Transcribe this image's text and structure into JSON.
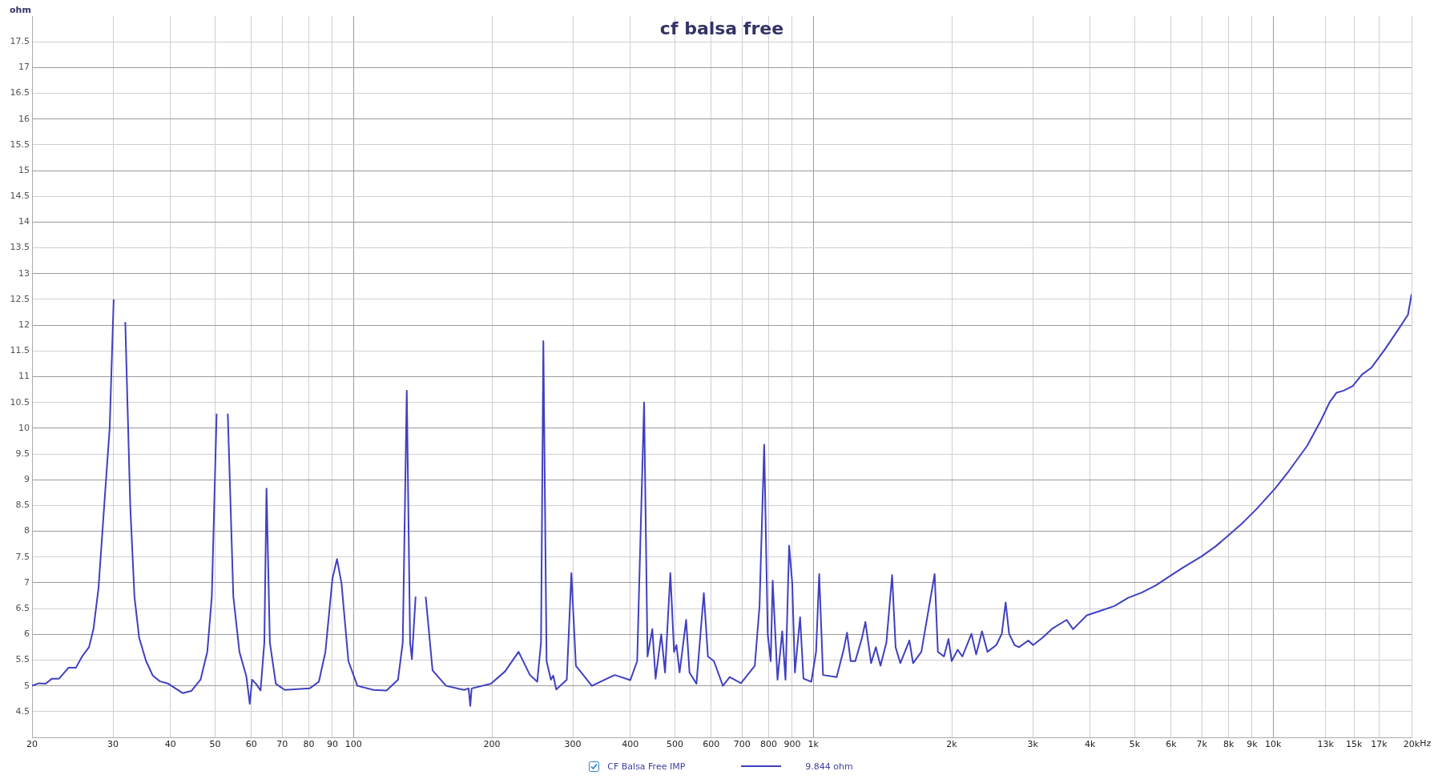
{
  "chart_data": {
    "type": "line",
    "title": "cf balsa free",
    "ylabel": "ohm",
    "annotations": [
      "9.844 ohm"
    ],
    "log": "x",
    "grid": true,
    "legend": "bottom",
    "marker": "none",
    "line_style": "solid",
    "xlim": [
      20,
      20000
    ],
    "xticks": [
      20,
      30,
      40,
      50,
      60,
      70,
      80,
      90,
      100,
      200,
      300,
      400,
      500,
      600,
      700,
      800,
      900,
      {
        "value": 1000,
        "label": "1k"
      },
      {
        "value": 2000,
        "label": "2k"
      },
      {
        "value": 3000,
        "label": "3k"
      },
      {
        "value": 4000,
        "label": "4k"
      },
      {
        "value": 5000,
        "label": "5k"
      },
      {
        "value": 6000,
        "label": "6k"
      },
      {
        "value": 7000,
        "label": "7k"
      },
      {
        "value": 8000,
        "label": "8k"
      },
      {
        "value": 9000,
        "label": "9k"
      },
      {
        "value": 10000,
        "label": "10k"
      },
      {
        "value": 13000,
        "label": "13k"
      },
      {
        "value": 15000,
        "label": "15k"
      },
      {
        "value": 17000,
        "label": "17k"
      },
      {
        "value": 20000,
        "label": "20k"
      }
    ],
    "xlabel": "Hz",
    "ylim": [
      4,
      18
    ],
    "yticks": [
      4.5,
      5,
      5.5,
      6,
      6.5,
      7,
      7.5,
      8,
      8.5,
      9,
      9.5,
      10,
      10.5,
      11,
      11.5,
      12,
      12.5,
      13,
      13.5,
      14,
      14.5,
      15,
      15.5,
      16,
      16.5,
      17,
      17.5
    ],
    "series": [
      {
        "name": "CF Balsa Free IMP",
        "color": "#4040c0",
        "x": [
          20,
          20.7,
          21.4,
          22.1,
          22.9,
          24.0,
          24.9,
          25.7,
          26.6,
          27.2,
          27.9,
          28.8,
          29.5,
          30.1,
          30.5,
          31.2,
          31.9,
          32.7,
          33.4,
          34.2,
          35.4,
          36.6,
          37.9,
          39.6,
          42.5,
          44.4,
          46.5,
          48.1,
          49.2,
          50.4,
          51.2,
          52.1,
          53.3,
          54.8,
          56.5,
          58.5,
          59.5,
          60.2,
          61.4,
          62.8,
          64.0,
          64.7,
          65.8,
          67.8,
          70.9,
          80.3,
          84.1,
          86.9,
          90.0,
          92.1,
          94.2,
          97.5,
          102,
          110.6,
          118,
          125,
          128,
          130.6,
          132.8,
          134,
          136.5,
          138.8,
          140.4,
          143.6,
          148.6,
          159,
          174,
          178,
          179.5,
          180.7,
          199,
          213.6,
          228.6,
          242,
          251,
          255.8,
          258.8,
          263,
          268.8,
          272,
          276,
          291,
          297.8,
          304.6,
          330,
          370,
          400,
          414,
          428.6,
          436,
          446.6,
          454,
          467,
          476,
          488.8,
          498,
          504,
          512,
          529,
          538,
          557,
          578,
          590,
          608,
          636,
          658,
          696,
          746,
          764,
          782,
          796,
          808,
          816,
          836,
          856,
          870,
          886,
          900,
          912,
          936,
          952,
          990,
          1014,
          1030,
          1050,
          1124,
          1164,
          1184,
          1206,
          1234,
          1276,
          1298,
          1336,
          1368,
          1400,
          1442,
          1484,
          1510,
          1546,
          1618,
          1648,
          1718,
          1836,
          1866,
          1924,
          1968,
          2000,
          2060,
          2110,
          2208,
          2260,
          2328,
          2392,
          2500,
          2570,
          2620,
          2666,
          2740,
          2800,
          2936,
          3006,
          3148,
          3320,
          3556,
          3672,
          3934,
          4220,
          4520,
          4840,
          5180,
          5560,
          5960,
          6380,
          6980,
          7480,
          8020,
          8600,
          9200,
          10100,
          10820,
          11860,
          12700,
          13280,
          13740,
          14240,
          14900,
          15600,
          16340,
          17500,
          18760,
          19640,
          20000
        ],
        "values": [
          5.0,
          5.05,
          5.04,
          5.14,
          5.14,
          5.35,
          5.35,
          5.57,
          5.75,
          6.1,
          6.9,
          8.68,
          10.0,
          12.5,
          null,
          null,
          12.06,
          8.5,
          6.73,
          5.93,
          5.48,
          5.2,
          5.09,
          5.04,
          4.86,
          4.9,
          5.12,
          5.66,
          6.73,
          10.28,
          null,
          null,
          10.28,
          6.73,
          5.66,
          5.18,
          4.65,
          5.12,
          5.04,
          4.91,
          5.84,
          8.83,
          5.84,
          5.04,
          4.92,
          4.95,
          5.08,
          5.66,
          7.08,
          7.46,
          6.99,
          5.48,
          5.0,
          4.92,
          4.91,
          5.12,
          5.84,
          10.73,
          5.84,
          5.52,
          6.73,
          null,
          null,
          6.73,
          5.3,
          5.0,
          4.92,
          4.95,
          4.61,
          4.95,
          5.04,
          5.28,
          5.66,
          5.21,
          5.08,
          5.84,
          11.69,
          5.48,
          5.12,
          5.2,
          4.93,
          5.12,
          7.19,
          5.39,
          5.0,
          5.21,
          5.11,
          5.48,
          10.5,
          5.57,
          6.1,
          5.14,
          6.0,
          5.26,
          7.19,
          5.66,
          5.79,
          5.26,
          6.28,
          5.26,
          5.04,
          6.8,
          5.57,
          5.48,
          5.0,
          5.17,
          5.05,
          5.39,
          6.55,
          9.68,
          6.0,
          5.48,
          7.04,
          5.12,
          6.06,
          5.12,
          7.72,
          6.99,
          5.26,
          6.33,
          5.14,
          5.08,
          5.66,
          7.17,
          5.21,
          5.17,
          5.7,
          6.03,
          5.48,
          5.48,
          5.93,
          6.24,
          5.44,
          5.75,
          5.39,
          5.84,
          7.15,
          5.75,
          5.44,
          5.88,
          5.44,
          5.66,
          7.17,
          5.66,
          5.57,
          5.91,
          5.48,
          5.7,
          5.57,
          6.01,
          5.61,
          6.06,
          5.66,
          5.79,
          6.01,
          6.62,
          6.01,
          5.79,
          5.75,
          5.88,
          5.79,
          5.93,
          6.12,
          6.28,
          6.1,
          6.37,
          6.46,
          6.55,
          6.71,
          6.81,
          6.95,
          7.13,
          7.3,
          7.51,
          7.7,
          7.93,
          8.17,
          8.43,
          8.83,
          9.17,
          9.66,
          10.15,
          10.51,
          10.69,
          10.73,
          10.82,
          11.04,
          11.17,
          11.53,
          11.93,
          12.2,
          12.6
        ]
      }
    ]
  }
}
